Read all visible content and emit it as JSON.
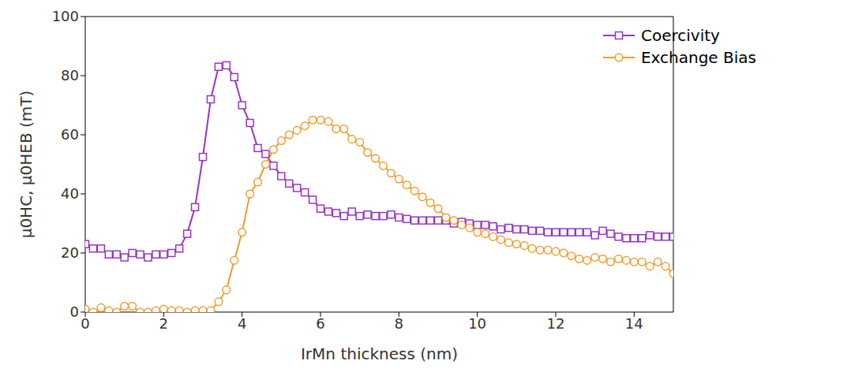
{
  "chart_data": {
    "type": "line",
    "xlabel": "IrMn thickness (nm)",
    "ylabel": "μ0HC, μ0HEB (mT)",
    "x": [
      0,
      0.2,
      0.4,
      0.6,
      0.8,
      1.0,
      1.2,
      1.4,
      1.6,
      1.8,
      2.0,
      2.2,
      2.4,
      2.6,
      2.8,
      3.0,
      3.2,
      3.4,
      3.6,
      3.8,
      4.0,
      4.2,
      4.4,
      4.6,
      4.8,
      5.0,
      5.2,
      5.4,
      5.6,
      5.8,
      6.0,
      6.2,
      6.4,
      6.6,
      6.8,
      7.0,
      7.2,
      7.4,
      7.6,
      7.8,
      8.0,
      8.2,
      8.4,
      8.6,
      8.8,
      9.0,
      9.2,
      9.4,
      9.6,
      9.8,
      10.0,
      10.2,
      10.4,
      10.6,
      10.8,
      11.0,
      11.2,
      11.4,
      11.6,
      11.8,
      12.0,
      12.2,
      12.4,
      12.6,
      12.8,
      13.0,
      13.2,
      13.4,
      13.6,
      13.8,
      14.0,
      14.2,
      14.4,
      14.6,
      14.8,
      15.0
    ],
    "series": [
      {
        "name": "Coercivity",
        "color": "#9933cc",
        "marker": "square",
        "values": [
          23,
          21.5,
          21.5,
          19.5,
          19.5,
          18.5,
          20,
          19.5,
          18.5,
          19.5,
          19.5,
          20,
          21.5,
          26.5,
          35.5,
          52.5,
          72,
          83,
          83.5,
          79.5,
          70,
          64,
          55.5,
          53.5,
          49.5,
          46,
          43.5,
          42,
          40.5,
          38,
          35,
          34,
          33.5,
          32.5,
          34,
          32.5,
          33,
          32.5,
          32.5,
          33,
          32,
          31.5,
          31,
          31,
          31,
          31,
          31,
          30,
          30.5,
          30,
          29.5,
          29.5,
          29,
          28,
          28.5,
          28,
          28,
          27.5,
          27.5,
          27,
          27,
          27,
          27,
          27,
          27,
          26,
          27.5,
          26.5,
          25.5,
          25,
          25,
          25,
          26,
          25.5,
          25.5,
          25.5
        ]
      },
      {
        "name": "Exchange Bias",
        "color": "#f39c2b",
        "marker": "circle",
        "values": [
          1,
          0,
          1.5,
          0.5,
          0,
          2,
          2,
          0,
          0,
          0.5,
          1,
          0.5,
          0.5,
          0,
          0.5,
          0.5,
          0.5,
          3.5,
          7.5,
          17.5,
          27,
          40,
          44,
          50,
          55,
          58,
          60,
          61.5,
          63,
          65,
          65,
          64.5,
          62,
          62,
          58.5,
          57.5,
          54,
          52,
          49.5,
          47,
          45,
          43,
          41,
          39,
          37,
          35,
          32,
          31,
          29.5,
          28.5,
          27,
          26.5,
          25.5,
          24.5,
          23.5,
          23,
          22.5,
          21.5,
          21,
          21,
          20.5,
          20,
          19,
          18,
          17.5,
          18.5,
          18,
          17,
          18,
          17.5,
          17,
          17,
          15.5,
          17,
          15.5,
          13
        ]
      }
    ],
    "xlim": [
      0,
      15
    ],
    "xticks": [
      0,
      2,
      4,
      6,
      8,
      10,
      12,
      14
    ],
    "ylim": [
      0,
      100
    ],
    "yticks": [
      0,
      20,
      40,
      60,
      80,
      100
    ],
    "grid": false,
    "legend": "upper right"
  }
}
